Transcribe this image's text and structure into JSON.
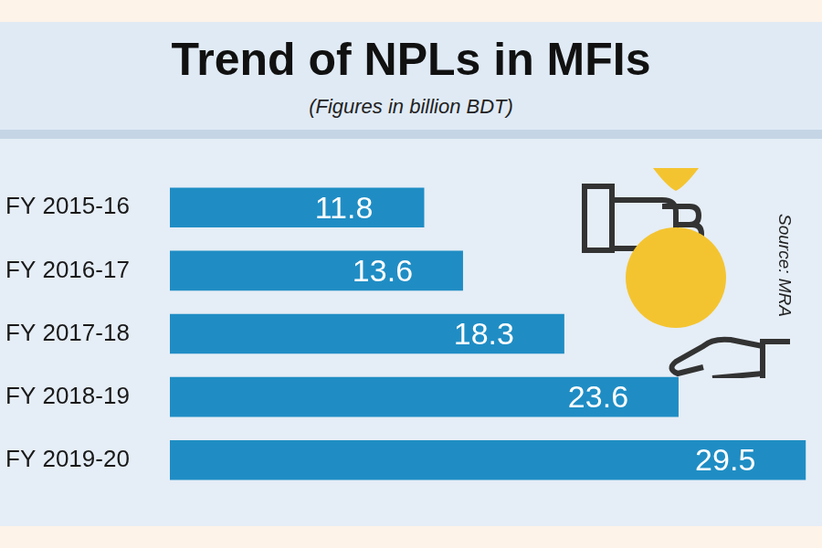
{
  "chart_data": {
    "type": "bar",
    "title": "Trend of NPLs in MFIs",
    "subtitle": "(Figures in billion BDT)",
    "source": "Source: MRA",
    "categories": [
      "FY 2015-16",
      "FY 2016-17",
      "FY 2017-18",
      "FY 2018-19",
      "FY 2019-20"
    ],
    "values": [
      11.8,
      13.6,
      18.3,
      23.6,
      29.5
    ],
    "color": "#1f8dc4",
    "orientation": "horizontal",
    "xlim": [
      0,
      30
    ],
    "grid": false,
    "data_labels": true,
    "tick_labels": "y"
  }
}
